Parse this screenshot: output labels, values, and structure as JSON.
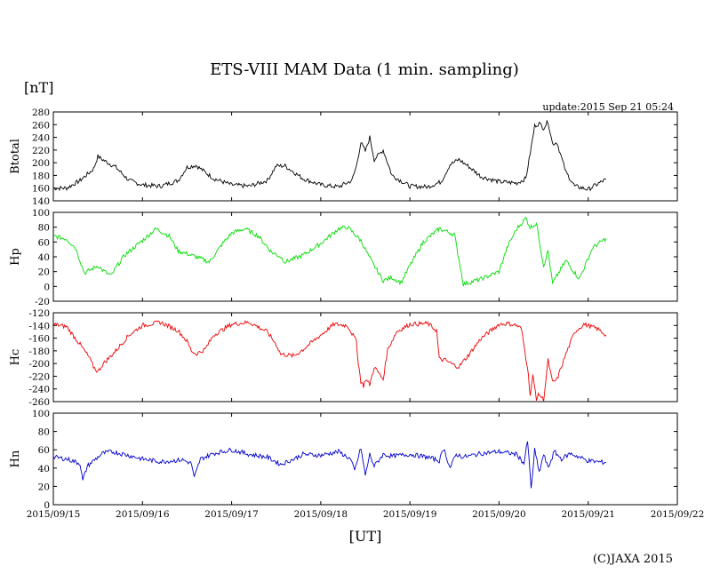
{
  "chart_data": {
    "type": "line",
    "title": "ETS-VIII MAM Data (1 min. sampling)",
    "unit_label": "[nT]",
    "update_text": "update:2015 Sep 21 05:24",
    "x_axis": {
      "label": "[UT]",
      "ticks": [
        "2015/09/15",
        "2015/09/16",
        "2015/09/17",
        "2015/09/18",
        "2015/09/19",
        "2015/09/20",
        "2015/09/21",
        "2015/09/22"
      ],
      "range_days": [
        0,
        7
      ]
    },
    "copyright": "(C)JAXA 2015",
    "grid": false,
    "panels": [
      {
        "name": "Btotal",
        "color": "#000000",
        "ylim": [
          140,
          280
        ],
        "yticks": [
          140,
          160,
          180,
          200,
          220,
          240,
          260,
          280
        ],
        "x_days": [
          0,
          0.15,
          0.3,
          0.45,
          0.5,
          0.55,
          0.7,
          0.85,
          1.0,
          1.2,
          1.4,
          1.5,
          1.6,
          1.8,
          2.0,
          2.2,
          2.4,
          2.5,
          2.6,
          2.8,
          3.0,
          3.2,
          3.35,
          3.4,
          3.45,
          3.5,
          3.55,
          3.6,
          3.7,
          3.8,
          4.0,
          4.2,
          4.35,
          4.45,
          4.55,
          4.65,
          4.8,
          5.0,
          5.2,
          5.3,
          5.35,
          5.4,
          5.45,
          5.5,
          5.55,
          5.6,
          5.65,
          5.75,
          5.85,
          6.0,
          6.2
        ],
        "values": [
          160,
          160,
          172,
          190,
          210,
          205,
          193,
          172,
          165,
          163,
          172,
          193,
          196,
          175,
          165,
          163,
          172,
          195,
          195,
          175,
          165,
          162,
          172,
          195,
          232,
          218,
          240,
          205,
          220,
          180,
          163,
          162,
          170,
          197,
          205,
          195,
          178,
          170,
          168,
          175,
          215,
          258,
          262,
          255,
          265,
          230,
          232,
          185,
          163,
          158,
          174
        ]
      },
      {
        "name": "Hp",
        "color": "#00dd00",
        "ylim": [
          -20,
          100
        ],
        "yticks": [
          -20,
          0,
          20,
          40,
          60,
          80,
          100
        ],
        "x_days": [
          0,
          0.15,
          0.25,
          0.35,
          0.5,
          0.55,
          0.65,
          0.7,
          0.8,
          1.0,
          1.15,
          1.3,
          1.4,
          1.6,
          1.75,
          1.9,
          2.0,
          2.15,
          2.3,
          2.45,
          2.55,
          2.6,
          2.8,
          3.0,
          3.2,
          3.3,
          3.45,
          3.55,
          3.7,
          3.8,
          3.9,
          4.0,
          4.15,
          4.3,
          4.33,
          4.5,
          4.6,
          4.8,
          5.0,
          5.05,
          5.1,
          5.2,
          5.3,
          5.35,
          5.42,
          5.5,
          5.55,
          5.6,
          5.75,
          5.9,
          6.05,
          6.2
        ],
        "values": [
          68,
          64,
          52,
          18,
          28,
          22,
          14,
          25,
          42,
          62,
          78,
          68,
          48,
          40,
          33,
          58,
          72,
          78,
          68,
          46,
          40,
          33,
          42,
          58,
          78,
          80,
          62,
          38,
          8,
          12,
          5,
          28,
          60,
          75,
          78,
          70,
          3,
          10,
          20,
          38,
          55,
          78,
          92,
          80,
          85,
          28,
          48,
          4,
          35,
          10,
          52,
          65
        ]
      },
      {
        "name": "Hc",
        "color": "#ee0000",
        "ylim": [
          -260,
          -120
        ],
        "yticks": [
          -260,
          -240,
          -220,
          -200,
          -180,
          -160,
          -140,
          -120
        ],
        "x_days": [
          0,
          0.15,
          0.3,
          0.4,
          0.45,
          0.5,
          0.55,
          0.7,
          0.85,
          1.0,
          1.2,
          1.4,
          1.5,
          1.55,
          1.6,
          1.7,
          1.8,
          2.0,
          2.2,
          2.4,
          2.5,
          2.55,
          2.7,
          2.8,
          3.0,
          3.15,
          3.3,
          3.4,
          3.42,
          3.45,
          3.48,
          3.5,
          3.55,
          3.6,
          3.7,
          3.75,
          3.85,
          4.0,
          4.2,
          4.3,
          4.33,
          4.4,
          4.5,
          4.55,
          4.65,
          4.8,
          5.0,
          5.1,
          5.2,
          5.25,
          5.3,
          5.32,
          5.35,
          5.38,
          5.42,
          5.45,
          5.5,
          5.55,
          5.6,
          5.65,
          5.75,
          5.85,
          5.95,
          6.1,
          6.2
        ],
        "values": [
          -138,
          -142,
          -170,
          -190,
          -205,
          -213,
          -202,
          -180,
          -155,
          -140,
          -135,
          -148,
          -165,
          -180,
          -185,
          -178,
          -155,
          -138,
          -135,
          -150,
          -170,
          -185,
          -188,
          -178,
          -155,
          -138,
          -140,
          -165,
          -198,
          -228,
          -235,
          -225,
          -233,
          -205,
          -225,
          -178,
          -150,
          -138,
          -137,
          -148,
          -193,
          -195,
          -203,
          -205,
          -188,
          -160,
          -138,
          -137,
          -140,
          -145,
          -190,
          -205,
          -250,
          -220,
          -255,
          -248,
          -258,
          -195,
          -230,
          -225,
          -185,
          -150,
          -138,
          -145,
          -155
        ]
      },
      {
        "name": "Hn",
        "color": "#0000cc",
        "ylim": [
          0,
          100
        ],
        "yticks": [
          0,
          20,
          40,
          60,
          80,
          100
        ],
        "x_days": [
          0,
          0.15,
          0.3,
          0.33,
          0.38,
          0.45,
          0.55,
          0.65,
          0.8,
          1.0,
          1.2,
          1.45,
          1.55,
          1.58,
          1.65,
          1.8,
          2.0,
          2.2,
          2.4,
          2.55,
          2.7,
          2.8,
          3.0,
          3.2,
          3.33,
          3.38,
          3.45,
          3.5,
          3.55,
          3.6,
          3.7,
          3.8,
          4.0,
          4.2,
          4.33,
          4.38,
          4.45,
          4.52,
          4.6,
          4.8,
          5.0,
          5.2,
          5.28,
          5.32,
          5.36,
          5.4,
          5.45,
          5.5,
          5.55,
          5.62,
          5.7,
          5.8,
          6.0,
          6.2
        ],
        "values": [
          52,
          50,
          45,
          26,
          42,
          48,
          56,
          58,
          55,
          50,
          47,
          49,
          45,
          29,
          50,
          56,
          60,
          55,
          52,
          44,
          50,
          55,
          54,
          58,
          50,
          37,
          62,
          32,
          55,
          42,
          55,
          53,
          55,
          52,
          48,
          62,
          40,
          55,
          52,
          56,
          58,
          55,
          45,
          70,
          17,
          60,
          35,
          55,
          40,
          58,
          50,
          56,
          48,
          46
        ]
      }
    ]
  }
}
